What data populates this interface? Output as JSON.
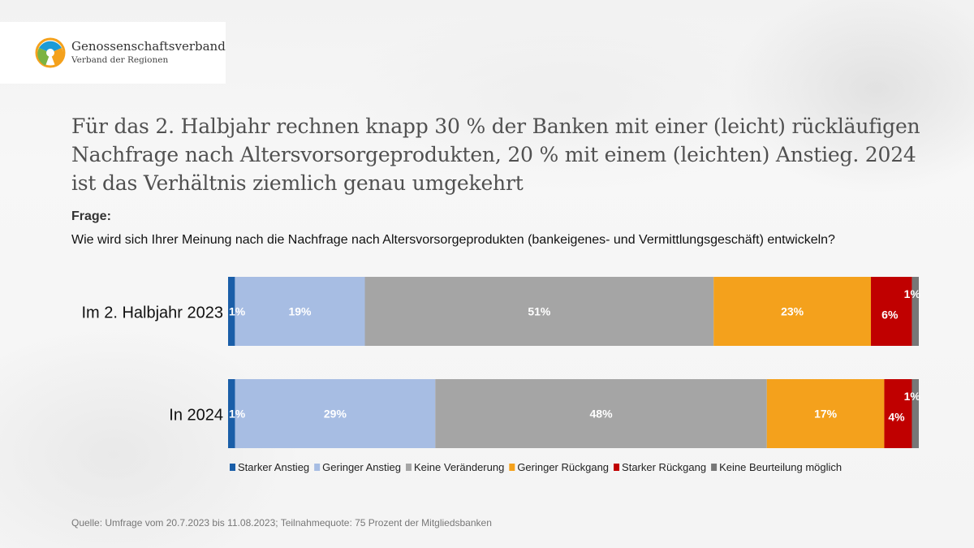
{
  "logo": {
    "title": "Genossenschaftsverband",
    "subtitle": "Verband der Regionen"
  },
  "headline": "Für das 2. Halbjahr rechnen knapp 30 % der Banken mit einer (leicht) rückläufigen Nachfrage nach Altersvorsorgeprodukten, 20 % mit einem (leichten) Anstieg. 2024 ist das Verhältnis ziemlich genau umgekehrt",
  "question": {
    "label": "Frage:",
    "text": "Wie wird sich Ihrer Meinung nach die Nachfrage nach Altersvorsorgeprodukten (bankeigenes- und Vermittlungsgeschäft) entwickeln?"
  },
  "source": "Quelle: Umfrage vom 20.7.2023 bis 11.08.2023; Teilnahmequote: 75 Prozent der Mitgliedsbanken",
  "chart_data": {
    "type": "bar",
    "orientation": "horizontal",
    "stacked": "100%",
    "categories": [
      "Im 2. Halbjahr 2023",
      "In 2024"
    ],
    "series": [
      {
        "name": "Starker Anstieg",
        "color": "#1a5ea8",
        "values": [
          1,
          1
        ],
        "label_color": "#ffffff"
      },
      {
        "name": "Geringer Anstieg",
        "color": "#a7bde3",
        "values": [
          19,
          29
        ],
        "label_color": "#ffffff"
      },
      {
        "name": "Keine Veränderung",
        "color": "#a5a5a5",
        "values": [
          51,
          48
        ],
        "label_color": "#ffffff"
      },
      {
        "name": "Geringer Rückgang",
        "color": "#f4a11c",
        "values": [
          23,
          17
        ],
        "label_color": "#ffffff"
      },
      {
        "name": "Starker Rückgang",
        "color": "#c00000",
        "values": [
          6,
          4
        ],
        "label_color": "#ffffff"
      },
      {
        "name": "Keine Beurteilung möglich",
        "color": "#777777",
        "values": [
          1,
          1
        ],
        "label_color": "#ffffff"
      }
    ],
    "value_suffix": "%",
    "legend_position": "bottom",
    "grid": false
  }
}
